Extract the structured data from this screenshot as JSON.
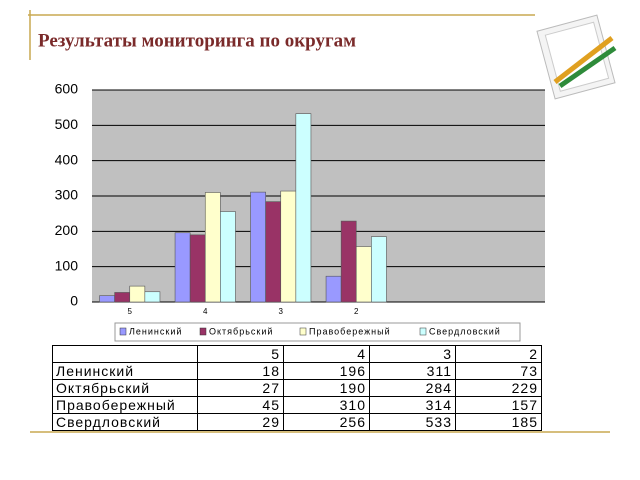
{
  "chart_data": {
    "type": "bar",
    "title": "Результаты мониторинга по округам",
    "categories": [
      "5",
      "4",
      "3",
      "2",
      null,
      null
    ],
    "series": [
      {
        "name": "Ленинский",
        "color": "#9999ff",
        "values": [
          18,
          196,
          311,
          73,
          null,
          null
        ]
      },
      {
        "name": "Октябрьский",
        "color": "#993366",
        "values": [
          27,
          190,
          284,
          229,
          null,
          null
        ]
      },
      {
        "name": "Правобережный",
        "color": "#ffffcc",
        "values": [
          45,
          310,
          314,
          157,
          null,
          null
        ]
      },
      {
        "name": "Свердловский",
        "color": "#ccffff",
        "values": [
          29,
          256,
          533,
          185,
          null,
          null
        ]
      }
    ],
    "ylim": [
      0,
      600
    ],
    "yticks": [
      0,
      100,
      200,
      300,
      400,
      500,
      600
    ],
    "grid": true,
    "legend": "bottom",
    "data_table": true
  }
}
